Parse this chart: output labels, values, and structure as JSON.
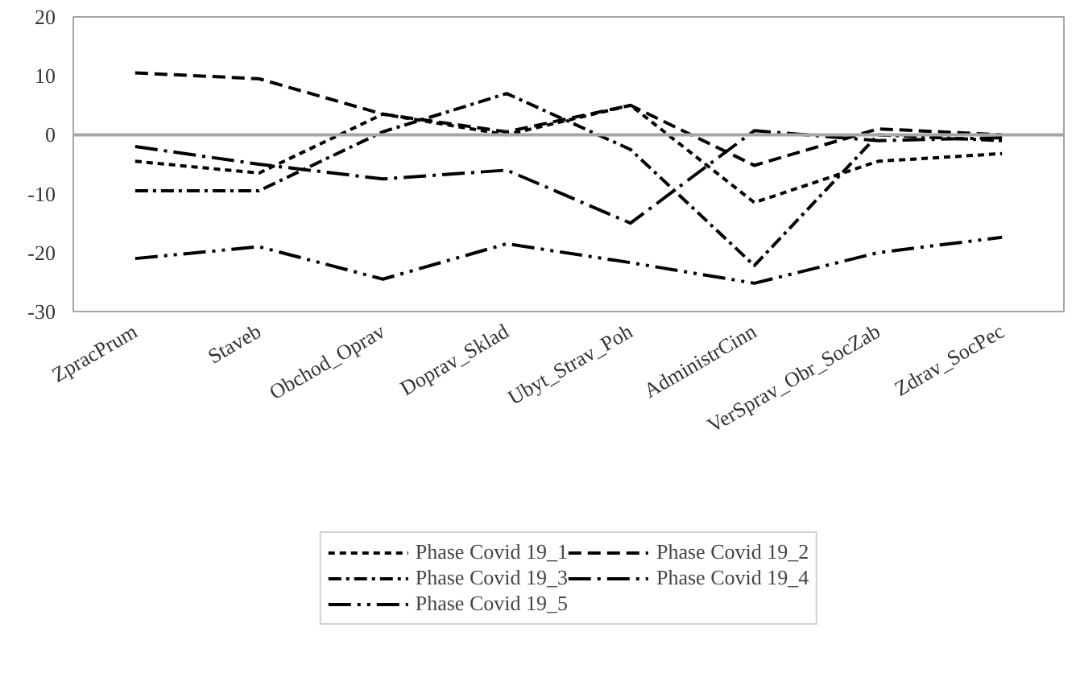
{
  "chart_data": {
    "type": "line",
    "categories": [
      "ZpracPrum",
      "Staveb",
      "Obchod_Oprav",
      "Doprav_Sklad",
      "Ubyt_Strav_Poh",
      "AdministrCinn",
      "VerSprav_Obr_SocZab",
      "Zdrav_SocPec"
    ],
    "ylim": [
      -30,
      20
    ],
    "yticks": [
      -30,
      -20,
      -10,
      0,
      10,
      20
    ],
    "grid": false,
    "legend": "bottom",
    "ref_lines": [
      {
        "axis": "y",
        "value": 0,
        "color": "#a6a6a6"
      }
    ],
    "series": [
      {
        "name": "Phase Covid 19_1",
        "color": "#000000",
        "line_style": "shortdash",
        "values": [
          -4.5,
          -6.5,
          3.5,
          0,
          5,
          -11.5,
          -4.5,
          -3.2
        ]
      },
      {
        "name": "Phase Covid 19_2",
        "color": "#000000",
        "line_style": "dashed",
        "values": [
          10.5,
          9.5,
          3.5,
          0.5,
          5,
          -5.2,
          1,
          0
        ]
      },
      {
        "name": "Phase Covid 19_3",
        "color": "#000000",
        "line_style": "dashdot",
        "values": [
          -9.5,
          -9.5,
          0.5,
          7,
          -2.5,
          -22.2,
          0,
          -1
        ]
      },
      {
        "name": "Phase Covid 19_4",
        "color": "#000000",
        "line_style": "longdashdot",
        "values": [
          -2,
          -5,
          -7.5,
          -6,
          -15,
          0.7,
          -1,
          -0.5
        ]
      },
      {
        "name": "Phase Covid 19_5",
        "color": "#000000",
        "line_style": "dashdotdot",
        "values": [
          -21,
          -19,
          -24.5,
          -18.5,
          -21.7,
          -25.2,
          -20,
          -17.4
        ]
      }
    ]
  }
}
